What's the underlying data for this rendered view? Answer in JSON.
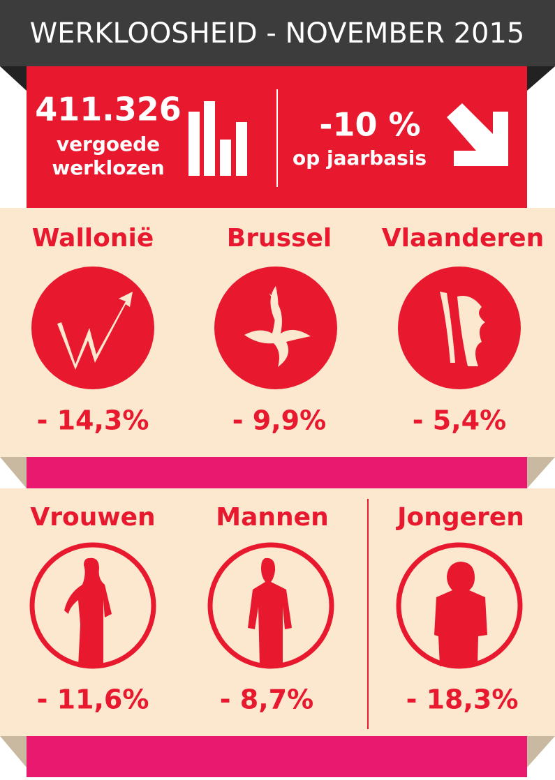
{
  "header": {
    "title": "WERKLOOSHEID - NOVEMBER 2015"
  },
  "summary": {
    "total": "411.326",
    "total_label_1": "vergoede",
    "total_label_2": "werklozen",
    "change": "-10 %",
    "change_label": "op jaarbasis"
  },
  "regions": [
    {
      "name": "Wallonië",
      "change": "- 14,3%"
    },
    {
      "name": "Brussel",
      "change": "- 9,9%"
    },
    {
      "name": "Vlaanderen",
      "change": "- 5,4%"
    }
  ],
  "groups": [
    {
      "name": "Vrouwen",
      "change": "- 11,6%"
    },
    {
      "name": "Mannen",
      "change": "- 8,7%"
    },
    {
      "name": "Jongeren",
      "change": "- 18,3%"
    }
  ]
}
